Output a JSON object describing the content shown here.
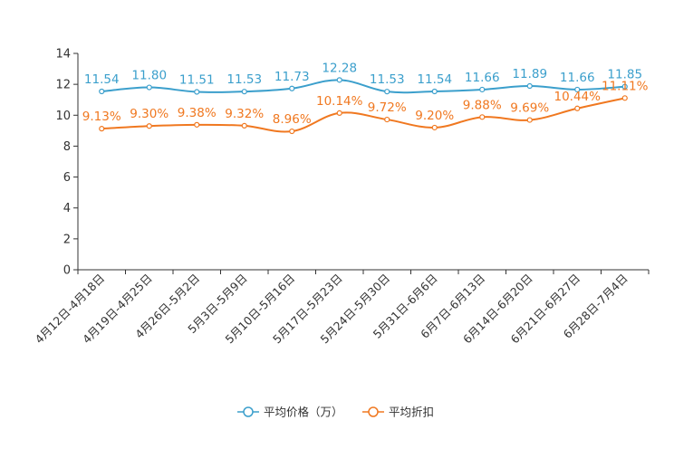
{
  "chart_data": {
    "type": "line",
    "title": "",
    "xlabel": "",
    "ylabel": "",
    "ylim": [
      0,
      14
    ],
    "yticks": [
      0,
      2,
      4,
      6,
      8,
      10,
      12,
      14
    ],
    "grid": false,
    "legend_position": "bottom-center",
    "categories": [
      "4月12日-4月18日",
      "4月19日-4月25日",
      "4月26日-5月2日",
      "5月3日-5月9日",
      "5月10日-5月16日",
      "5月17日-5月23日",
      "5月24日-5月30日",
      "5月31日-6月6日",
      "6月7日-6月13日",
      "6月14日-6月20日",
      "6月21日-6月27日",
      "6月28日-7月4日"
    ],
    "series": [
      {
        "name": "平均价格（万）",
        "color": "#3b9fcc",
        "values": [
          11.54,
          11.8,
          11.51,
          11.53,
          11.73,
          12.28,
          11.53,
          11.54,
          11.66,
          11.89,
          11.66,
          11.85
        ],
        "labels": [
          "11.54",
          "11.80",
          "11.51",
          "11.53",
          "11.73",
          "12.28",
          "11.53",
          "11.54",
          "11.66",
          "11.89",
          "11.66",
          "11.85"
        ]
      },
      {
        "name": "平均折扣",
        "color": "#f07820",
        "values": [
          9.13,
          9.3,
          9.38,
          9.32,
          8.96,
          10.14,
          9.72,
          9.2,
          9.88,
          9.69,
          10.44,
          11.11
        ],
        "labels": [
          "9.13%",
          "9.30%",
          "9.38%",
          "9.32%",
          "8.96%",
          "10.14%",
          "9.72%",
          "9.20%",
          "9.88%",
          "9.69%",
          "10.44%",
          "11.11%"
        ]
      }
    ]
  }
}
